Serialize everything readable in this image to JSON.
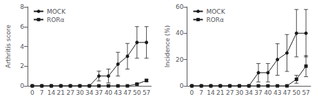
{
  "chart_data": [
    {
      "type": "line",
      "ylabel": "Arthritis score",
      "categories": [
        "0",
        "7",
        "14",
        "21",
        "27",
        "30",
        "34",
        "37",
        "40",
        "43",
        "47",
        "50",
        "57"
      ],
      "ylim": [
        0,
        8
      ],
      "yticks": [
        0,
        2,
        4,
        6,
        8
      ],
      "grid": false,
      "legend": "upper left",
      "series": [
        {
          "name": "MOCK",
          "color": "#1a1a1a",
          "marker": "circle",
          "values": [
            0,
            0,
            0,
            0,
            0,
            0,
            0,
            1.0,
            1.0,
            2.2,
            3.0,
            4.4,
            4.4
          ],
          "errors": [
            0,
            0,
            0,
            0,
            0,
            0,
            0,
            0.5,
            0.7,
            1.2,
            1.3,
            1.6,
            1.6
          ]
        },
        {
          "name": "RORα",
          "color": "#1a1a1a",
          "marker": "square",
          "values": [
            0,
            0,
            0,
            0,
            0,
            0,
            0,
            0,
            0,
            0,
            0,
            0.18,
            0.55
          ],
          "errors": [
            0,
            0,
            0,
            0,
            0,
            0,
            0,
            0,
            0,
            0,
            0,
            0.08,
            0.12
          ]
        }
      ]
    },
    {
      "type": "line",
      "ylabel": "Incidence (%)",
      "categories": [
        "0",
        "7",
        "14",
        "21",
        "27",
        "30",
        "34",
        "37",
        "40",
        "43",
        "47",
        "50",
        "57"
      ],
      "ylim": [
        0,
        60
      ],
      "yticks": [
        0,
        20,
        40,
        60
      ],
      "grid": false,
      "legend": "upper left",
      "series": [
        {
          "name": "MOCK",
          "color": "#1a1a1a",
          "marker": "circle",
          "values": [
            0,
            0,
            0,
            0,
            0,
            0,
            0,
            10.0,
            10.0,
            20.0,
            25.0,
            40.0,
            40.0
          ],
          "errors": [
            0,
            0,
            0,
            0,
            0,
            0,
            0,
            7.0,
            7.0,
            12.0,
            14.0,
            18.0,
            18.0
          ]
        },
        {
          "name": "RORα",
          "color": "#1a1a1a",
          "marker": "square",
          "values": [
            0,
            0,
            0,
            0,
            0,
            0,
            0,
            0,
            0,
            0,
            0,
            5.0,
            15.0
          ],
          "errors": [
            0,
            0,
            0,
            0,
            0,
            0,
            0,
            0,
            0,
            0,
            0,
            3.0,
            8.0
          ]
        }
      ]
    }
  ]
}
